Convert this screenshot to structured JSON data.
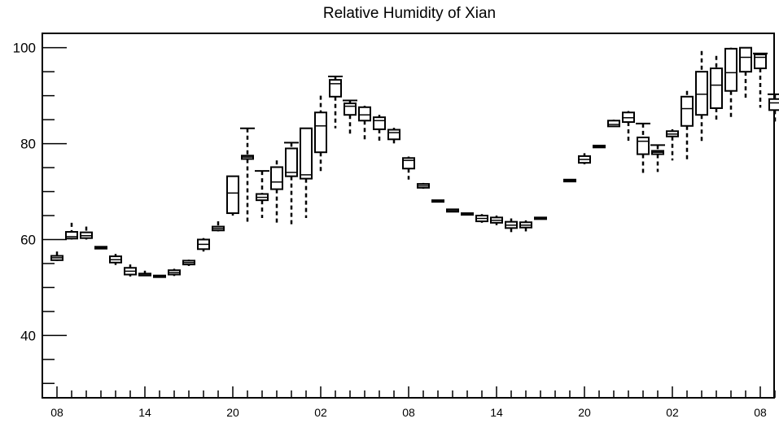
{
  "chart_data": {
    "type": "box",
    "title": "Relative Humidity of Xian",
    "xlabel": "",
    "ylabel": "",
    "ylim": [
      27,
      103
    ],
    "yticks": [
      40,
      60,
      80,
      100
    ],
    "x_tick_labels": [
      "08",
      "14",
      "20",
      "02",
      "08",
      "14",
      "20",
      "02",
      "08"
    ],
    "x_tick_positions": [
      0,
      6,
      12,
      18,
      24,
      30,
      36,
      42,
      48
    ],
    "grid": false,
    "boxes": [
      {
        "x": 0,
        "whisker_low": 55.5,
        "q1": 55.7,
        "median": 56.2,
        "q3": 56.6,
        "whisker_high": 57.5,
        "cap": false
      },
      {
        "x": 1,
        "whisker_low": 60.0,
        "q1": 60.2,
        "median": 60.6,
        "q3": 61.6,
        "whisker_high": 63.5,
        "cap": false
      },
      {
        "x": 2,
        "whisker_low": 60.0,
        "q1": 60.3,
        "median": 60.8,
        "q3": 61.5,
        "whisker_high": 62.7,
        "cap": false
      },
      {
        "x": 3,
        "whisker_low": 58.0,
        "q1": 58.1,
        "median": 58.3,
        "q3": 58.5,
        "whisker_high": 58.6,
        "cap": false
      },
      {
        "x": 4,
        "whisker_low": 54.7,
        "q1": 55.2,
        "median": 55.8,
        "q3": 56.5,
        "whisker_high": 57.0,
        "cap": false
      },
      {
        "x": 5,
        "whisker_low": 52.3,
        "q1": 52.7,
        "median": 53.4,
        "q3": 54.1,
        "whisker_high": 54.8,
        "cap": false
      },
      {
        "x": 6,
        "whisker_low": 52.4,
        "q1": 52.5,
        "median": 52.6,
        "q3": 52.9,
        "whisker_high": 53.5,
        "cap": false
      },
      {
        "x": 7,
        "whisker_low": 52.3,
        "q1": 52.3,
        "median": 52.4,
        "q3": 52.5,
        "whisker_high": 52.5,
        "cap": false
      },
      {
        "x": 8,
        "whisker_low": 52.4,
        "q1": 52.7,
        "median": 53.1,
        "q3": 53.6,
        "whisker_high": 53.9,
        "cap": false
      },
      {
        "x": 9,
        "whisker_low": 54.5,
        "q1": 54.8,
        "median": 55.2,
        "q3": 55.6,
        "whisker_high": 55.8,
        "cap": false
      },
      {
        "x": 10,
        "whisker_low": 57.5,
        "q1": 58.0,
        "median": 59.0,
        "q3": 60.0,
        "whisker_high": 60.3,
        "cap": false
      },
      {
        "x": 11,
        "whisker_low": 61.7,
        "q1": 61.9,
        "median": 62.3,
        "q3": 62.7,
        "whisker_high": 63.8,
        "cap": false
      },
      {
        "x": 12,
        "whisker_low": 65.0,
        "q1": 65.5,
        "median": 69.7,
        "q3": 73.2,
        "whisker_high": 73.2,
        "cap": false
      },
      {
        "x": 13,
        "whisker_low": 63.5,
        "q1": 76.8,
        "median": 77.2,
        "q3": 77.5,
        "whisker_high": 83.2,
        "cap": true
      },
      {
        "x": 14,
        "whisker_low": 64.5,
        "q1": 68.2,
        "median": 68.8,
        "q3": 69.5,
        "whisker_high": 74.3,
        "cap": true
      },
      {
        "x": 15,
        "whisker_low": 63.0,
        "q1": 70.5,
        "median": 72.0,
        "q3": 75.1,
        "whisker_high": 76.5,
        "cap": false
      },
      {
        "x": 16,
        "whisker_low": 63.0,
        "q1": 73.2,
        "median": 74.0,
        "q3": 79.0,
        "whisker_high": 80.2,
        "cap": true
      },
      {
        "x": 17,
        "whisker_low": 64.5,
        "q1": 72.7,
        "median": 73.5,
        "q3": 83.2,
        "whisker_high": 83.2,
        "cap": false
      },
      {
        "x": 18,
        "whisker_low": 74.0,
        "q1": 78.2,
        "median": 83.7,
        "q3": 86.5,
        "whisker_high": 90.0,
        "cap": false
      },
      {
        "x": 19,
        "whisker_low": 83.2,
        "q1": 89.8,
        "median": 92.5,
        "q3": 93.3,
        "whisker_high": 94.0,
        "cap": true
      },
      {
        "x": 20,
        "whisker_low": 81.7,
        "q1": 86.0,
        "median": 87.8,
        "q3": 88.4,
        "whisker_high": 89.0,
        "cap": true
      },
      {
        "x": 21,
        "whisker_low": 80.6,
        "q1": 84.8,
        "median": 86.0,
        "q3": 87.6,
        "whisker_high": 87.9,
        "cap": false
      },
      {
        "x": 22,
        "whisker_low": 80.5,
        "q1": 83.0,
        "median": 84.8,
        "q3": 85.5,
        "whisker_high": 86.0,
        "cap": false
      },
      {
        "x": 23,
        "whisker_low": 79.8,
        "q1": 80.9,
        "median": 82.3,
        "q3": 82.9,
        "whisker_high": 83.3,
        "cap": false
      },
      {
        "x": 24,
        "whisker_low": 72.5,
        "q1": 74.8,
        "median": 76.5,
        "q3": 77.0,
        "whisker_high": 77.3,
        "cap": false
      },
      {
        "x": 25,
        "whisker_low": 70.6,
        "q1": 70.8,
        "median": 71.2,
        "q3": 71.6,
        "whisker_high": 71.8,
        "cap": false
      },
      {
        "x": 26,
        "whisker_low": 67.8,
        "q1": 67.9,
        "median": 68.0,
        "q3": 68.2,
        "whisker_high": 68.3,
        "cap": false
      },
      {
        "x": 27,
        "whisker_low": 65.7,
        "q1": 65.8,
        "median": 66.0,
        "q3": 66.3,
        "whisker_high": 66.4,
        "cap": false
      },
      {
        "x": 28,
        "whisker_low": 65.0,
        "q1": 65.2,
        "median": 65.3,
        "q3": 65.5,
        "whisker_high": 65.5,
        "cap": false
      },
      {
        "x": 29,
        "whisker_low": 63.5,
        "q1": 63.8,
        "median": 64.4,
        "q3": 65.0,
        "whisker_high": 65.3,
        "cap": false
      },
      {
        "x": 30,
        "whisker_low": 63.0,
        "q1": 63.5,
        "median": 64.0,
        "q3": 64.6,
        "whisker_high": 65.0,
        "cap": false
      },
      {
        "x": 31,
        "whisker_low": 61.5,
        "q1": 62.4,
        "median": 63.0,
        "q3": 63.7,
        "whisker_high": 64.4,
        "cap": false
      },
      {
        "x": 32,
        "whisker_low": 61.7,
        "q1": 62.5,
        "median": 63.0,
        "q3": 63.6,
        "whisker_high": 64.0,
        "cap": false
      },
      {
        "x": 33,
        "whisker_low": 64.2,
        "q1": 64.3,
        "median": 64.5,
        "q3": 64.6,
        "whisker_high": 64.7,
        "cap": false
      },
      {
        "x": 35,
        "whisker_low": 72.0,
        "q1": 72.1,
        "median": 72.3,
        "q3": 72.5,
        "whisker_high": 72.6,
        "cap": false
      },
      {
        "x": 36,
        "whisker_low": 75.7,
        "q1": 76.0,
        "median": 76.7,
        "q3": 77.4,
        "whisker_high": 78.0,
        "cap": false
      },
      {
        "x": 37,
        "whisker_low": 79.1,
        "q1": 79.2,
        "median": 79.4,
        "q3": 79.6,
        "whisker_high": 79.7,
        "cap": false
      },
      {
        "x": 38,
        "whisker_low": 83.5,
        "q1": 83.6,
        "median": 84.0,
        "q3": 84.8,
        "whisker_high": 85.0,
        "cap": false
      },
      {
        "x": 39,
        "whisker_low": 80.0,
        "q1": 84.5,
        "median": 85.4,
        "q3": 86.5,
        "whisker_high": 86.8,
        "cap": false
      },
      {
        "x": 40,
        "whisker_low": 73.8,
        "q1": 77.8,
        "median": 80.5,
        "q3": 81.3,
        "whisker_high": 84.2,
        "cap": true
      },
      {
        "x": 41,
        "whisker_low": 74.1,
        "q1": 77.8,
        "median": 78.2,
        "q3": 78.5,
        "whisker_high": 79.7,
        "cap": true
      },
      {
        "x": 42,
        "whisker_low": 76.5,
        "q1": 81.5,
        "median": 82.0,
        "q3": 82.6,
        "whisker_high": 83.0,
        "cap": false
      },
      {
        "x": 43,
        "whisker_low": 76.5,
        "q1": 83.7,
        "median": 87.3,
        "q3": 89.8,
        "whisker_high": 91.0,
        "cap": false
      },
      {
        "x": 44,
        "whisker_low": 80.5,
        "q1": 86.0,
        "median": 90.3,
        "q3": 95.0,
        "whisker_high": 99.3,
        "cap": false
      },
      {
        "x": 45,
        "whisker_low": 84.5,
        "q1": 87.4,
        "median": 92.2,
        "q3": 95.7,
        "whisker_high": 98.3,
        "cap": false
      },
      {
        "x": 46,
        "whisker_low": 85.5,
        "q1": 91.0,
        "median": 94.8,
        "q3": 99.8,
        "whisker_high": 100.0,
        "cap": false
      },
      {
        "x": 47,
        "whisker_low": 89.0,
        "q1": 95.0,
        "median": 98.0,
        "q3": 100.0,
        "whisker_high": 100.0,
        "cap": false
      },
      {
        "x": 48,
        "whisker_low": 87.5,
        "q1": 95.7,
        "median": 98.0,
        "q3": 98.6,
        "whisker_high": 98.8,
        "cap": true
      },
      {
        "x": 49,
        "whisker_low": 84.0,
        "q1": 87.0,
        "median": 88.5,
        "q3": 89.3,
        "whisker_high": 90.3,
        "cap": true
      }
    ]
  }
}
